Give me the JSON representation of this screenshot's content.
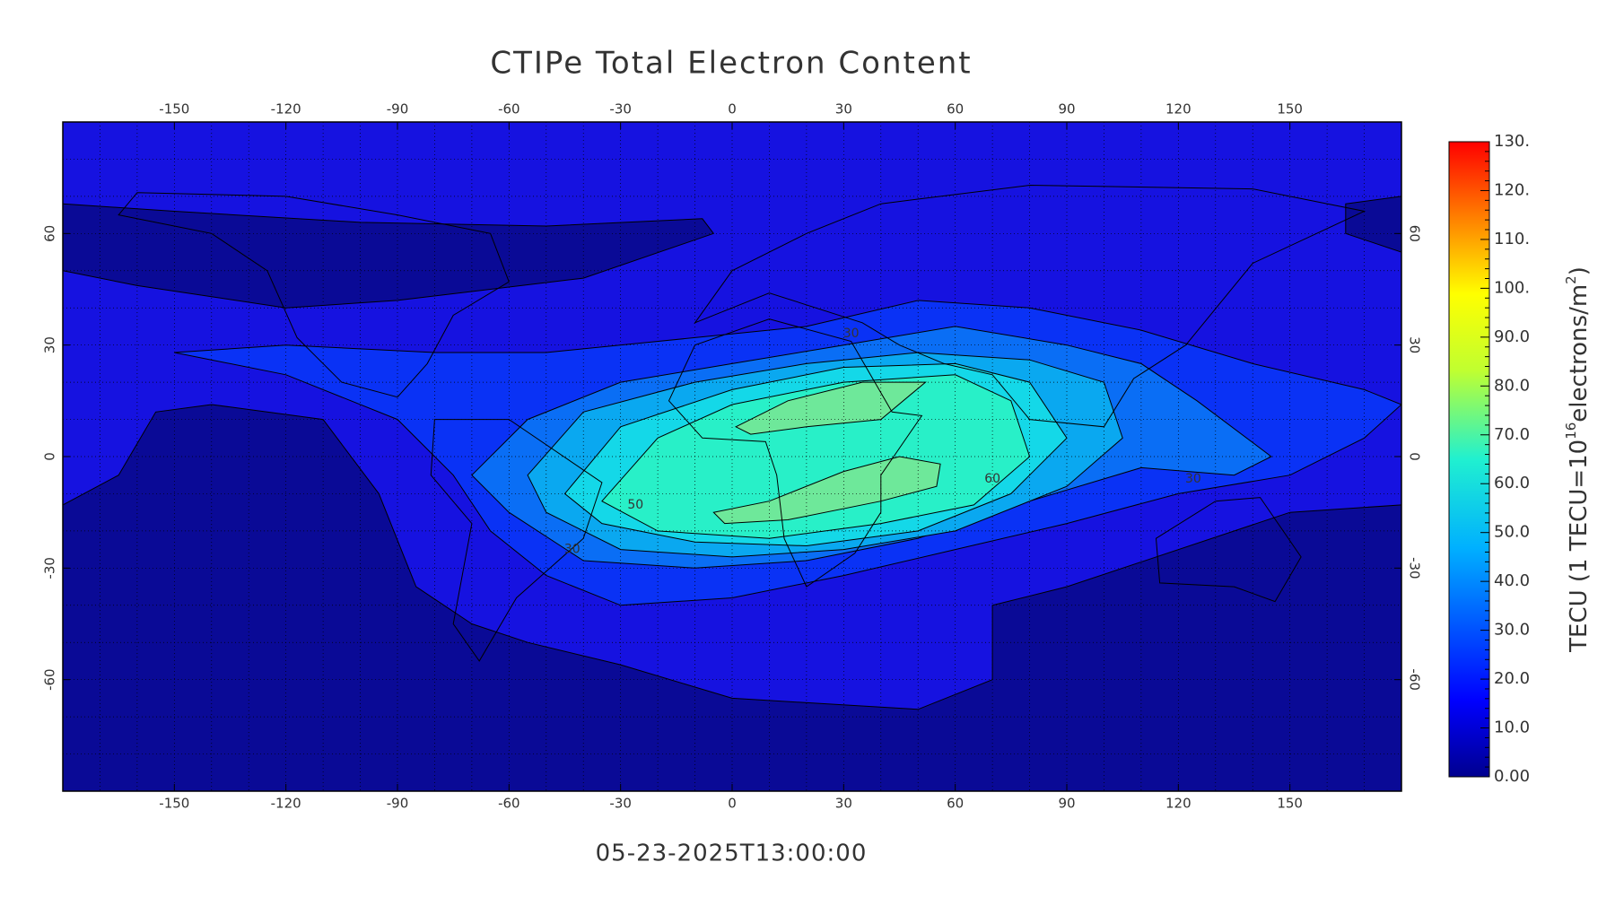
{
  "map": {
    "title": "CTIPe Total Electron Content",
    "timestamp": "05-23-2025T13:00:00",
    "xlim": [
      -180,
      180
    ],
    "ylim": [
      -90,
      90
    ],
    "xticks": [
      -150,
      -120,
      -90,
      -60,
      -30,
      0,
      30,
      60,
      90,
      120,
      150
    ],
    "yticks": [
      -60,
      -30,
      0,
      30,
      60
    ],
    "contour_labels": [
      30,
      50,
      30,
      60,
      30
    ],
    "colorbar": {
      "lim": [
        0,
        130
      ],
      "ticks": [
        {
          "value": 0,
          "label": "0.00"
        },
        {
          "value": 10,
          "label": "10.0"
        },
        {
          "value": 20,
          "label": "20.0"
        },
        {
          "value": 30,
          "label": "30.0"
        },
        {
          "value": 40,
          "label": "40.0"
        },
        {
          "value": 50,
          "label": "50.0"
        },
        {
          "value": 60,
          "label": "60.0"
        },
        {
          "value": 70,
          "label": "70.0"
        },
        {
          "value": 80,
          "label": "80.0"
        },
        {
          "value": 90,
          "label": "90.0"
        },
        {
          "value": 100,
          "label": "100."
        },
        {
          "value": 110,
          "label": "110."
        },
        {
          "value": 120,
          "label": "120."
        },
        {
          "value": 130,
          "label": "130."
        }
      ],
      "title": [
        "TECU (1 TECU=10",
        "16",
        "electrons/m",
        "2",
        ")"
      ]
    }
  }
}
